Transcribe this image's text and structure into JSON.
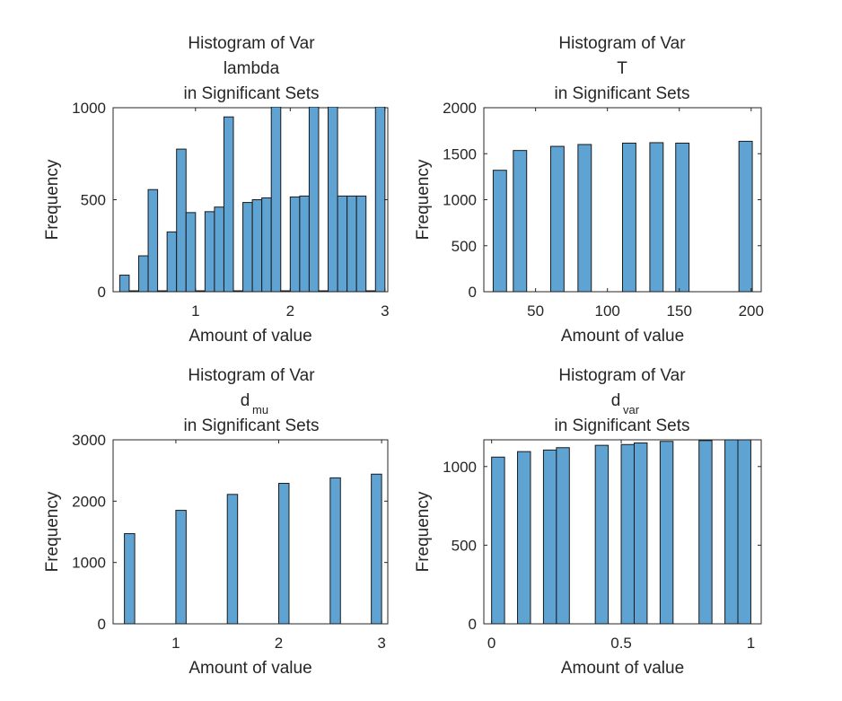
{
  "colors": {
    "bar_fill": "#5fa3d3",
    "bar_edge": "#1a1a1a",
    "axis": "#262626",
    "background": "#ffffff"
  },
  "chart_data": [
    {
      "type": "bar",
      "title_lines": [
        "Histogram of Var",
        "lambda",
        "in Significant Sets"
      ],
      "xlabel": "Amount of value",
      "ylabel": "Frequency",
      "xlim": [
        0.13,
        3.03
      ],
      "ylim": [
        0,
        1000
      ],
      "bin_width": 0.1,
      "xticks": [
        1,
        2,
        3
      ],
      "xtick_labels": [
        "1",
        "2",
        "3"
      ],
      "yticks": [
        0,
        500,
        1000
      ],
      "ytick_labels": [
        "0",
        "500",
        "1000"
      ],
      "bins": [
        {
          "start": 0.2,
          "value": 90
        },
        {
          "start": 0.3,
          "value": 5
        },
        {
          "start": 0.4,
          "value": 195
        },
        {
          "start": 0.5,
          "value": 555
        },
        {
          "start": 0.6,
          "value": 5
        },
        {
          "start": 0.7,
          "value": 325
        },
        {
          "start": 0.8,
          "value": 775
        },
        {
          "start": 0.9,
          "value": 430
        },
        {
          "start": 1.0,
          "value": 5
        },
        {
          "start": 1.1,
          "value": 435
        },
        {
          "start": 1.2,
          "value": 460
        },
        {
          "start": 1.3,
          "value": 950
        },
        {
          "start": 1.4,
          "value": 5
        },
        {
          "start": 1.5,
          "value": 485
        },
        {
          "start": 1.6,
          "value": 500
        },
        {
          "start": 1.7,
          "value": 510
        },
        {
          "start": 1.8,
          "value": 1035
        },
        {
          "start": 1.9,
          "value": 5
        },
        {
          "start": 2.0,
          "value": 515
        },
        {
          "start": 2.1,
          "value": 520
        },
        {
          "start": 2.2,
          "value": 1045
        },
        {
          "start": 2.3,
          "value": 5
        },
        {
          "start": 2.4,
          "value": 1050
        },
        {
          "start": 2.5,
          "value": 520
        },
        {
          "start": 2.6,
          "value": 520
        },
        {
          "start": 2.7,
          "value": 520
        },
        {
          "start": 2.8,
          "value": 5
        },
        {
          "start": 2.9,
          "value": 1055
        }
      ]
    },
    {
      "type": "bar",
      "title_lines": [
        "Histogram of Var",
        "T",
        "in Significant Sets"
      ],
      "xlabel": "Amount of value",
      "ylabel": "Frequency",
      "xlim": [
        14,
        207
      ],
      "ylim": [
        0,
        2000
      ],
      "bin_width": 9.3,
      "xticks": [
        50,
        100,
        150,
        200
      ],
      "xtick_labels": [
        "50",
        "100",
        "150",
        "200"
      ],
      "yticks": [
        0,
        500,
        1000,
        1500,
        2000
      ],
      "ytick_labels": [
        "0",
        "500",
        "1000",
        "1500",
        "2000"
      ],
      "bins": [
        {
          "start": 20.5,
          "value": 1320
        },
        {
          "start": 34.5,
          "value": 1535
        },
        {
          "start": 60.5,
          "value": 1580
        },
        {
          "start": 79.5,
          "value": 1600
        },
        {
          "start": 110.5,
          "value": 1615
        },
        {
          "start": 129.5,
          "value": 1620
        },
        {
          "start": 147.5,
          "value": 1615
        },
        {
          "start": 191.5,
          "value": 1635
        }
      ]
    },
    {
      "type": "bar",
      "title_lines": [
        "Histogram of Var",
        "d",
        "in Significant Sets"
      ],
      "title_subscript": "mu",
      "xlabel": "Amount of value",
      "ylabel": "Frequency",
      "xlim": [
        0.39,
        3.06
      ],
      "ylim": [
        0,
        3000
      ],
      "bin_width": 0.1,
      "xticks": [
        1,
        2,
        3
      ],
      "xtick_labels": [
        "1",
        "2",
        "3"
      ],
      "yticks": [
        0,
        1000,
        2000,
        3000
      ],
      "ytick_labels": [
        "0",
        "1000",
        "2000",
        "3000"
      ],
      "bins": [
        {
          "start": 0.5,
          "value": 1470
        },
        {
          "start": 1.0,
          "value": 1850
        },
        {
          "start": 1.5,
          "value": 2110
        },
        {
          "start": 2.0,
          "value": 2290
        },
        {
          "start": 2.5,
          "value": 2380
        },
        {
          "start": 2.9,
          "value": 2440
        }
      ]
    },
    {
      "type": "bar",
      "title_lines": [
        "Histogram of Var",
        "d",
        "in Significant Sets"
      ],
      "title_subscript": "var",
      "xlabel": "Amount of value",
      "ylabel": "Frequency",
      "xlim": [
        -0.03,
        1.04
      ],
      "ylim": [
        0,
        1170
      ],
      "bin_width": 0.05,
      "xticks": [
        0,
        0.5,
        1
      ],
      "xtick_labels": [
        "0",
        "0.5",
        "1"
      ],
      "yticks": [
        0,
        500,
        1000
      ],
      "ytick_labels": [
        "0",
        "500",
        "1000"
      ],
      "bins": [
        {
          "start": 0.0,
          "value": 1060
        },
        {
          "start": 0.1,
          "value": 1095
        },
        {
          "start": 0.2,
          "value": 1105
        },
        {
          "start": 0.25,
          "value": 1120
        },
        {
          "start": 0.4,
          "value": 1135
        },
        {
          "start": 0.5,
          "value": 1140
        },
        {
          "start": 0.55,
          "value": 1150
        },
        {
          "start": 0.65,
          "value": 1160
        },
        {
          "start": 0.8,
          "value": 1165
        },
        {
          "start": 0.9,
          "value": 1170
        },
        {
          "start": 0.95,
          "value": 1170
        }
      ]
    }
  ]
}
